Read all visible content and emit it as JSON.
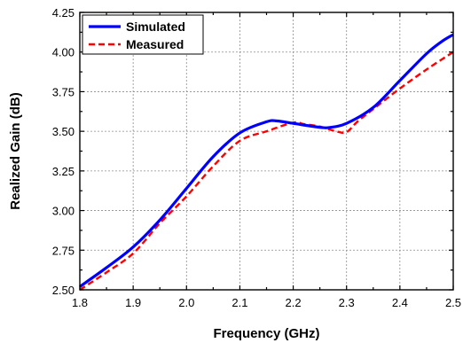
{
  "chart_data": {
    "type": "line",
    "title": "",
    "xlabel": "Frequency (GHz)",
    "ylabel": "Realized Gain (dB)",
    "xlim": [
      1.8,
      2.5
    ],
    "ylim": [
      2.5,
      4.25
    ],
    "xticks": [
      "1.8",
      "1.9",
      "2.0",
      "2.1",
      "2.2",
      "2.3",
      "2.4",
      "2.5"
    ],
    "yticks": [
      "2.50",
      "2.75",
      "3.00",
      "3.25",
      "3.50",
      "3.75",
      "4.00",
      "4.25"
    ],
    "grid": true,
    "legend_position": "top-left",
    "series": [
      {
        "name": "Simulated",
        "color": "#0000ff",
        "style": "solid",
        "x": [
          1.8,
          1.85,
          1.9,
          1.95,
          2.0,
          2.05,
          2.1,
          2.15,
          2.17,
          2.2,
          2.25,
          2.27,
          2.3,
          2.35,
          2.4,
          2.45,
          2.48,
          2.5
        ],
        "y": [
          2.52,
          2.64,
          2.77,
          2.94,
          3.14,
          3.34,
          3.49,
          3.56,
          3.565,
          3.55,
          3.525,
          3.525,
          3.55,
          3.65,
          3.82,
          3.99,
          4.07,
          4.11
        ]
      },
      {
        "name": "Measured",
        "color": "#ff0000",
        "style": "dashed",
        "x": [
          1.8,
          1.85,
          1.9,
          1.95,
          2.0,
          2.05,
          2.1,
          2.15,
          2.2,
          2.22,
          2.25,
          2.28,
          2.3,
          2.32,
          2.35,
          2.4,
          2.45,
          2.5
        ],
        "y": [
          2.5,
          2.61,
          2.73,
          2.92,
          3.09,
          3.28,
          3.44,
          3.5,
          3.555,
          3.545,
          3.53,
          3.5,
          3.495,
          3.56,
          3.64,
          3.77,
          3.89,
          4.0
        ]
      }
    ]
  }
}
